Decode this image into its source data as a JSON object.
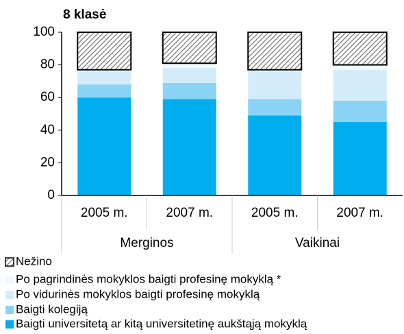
{
  "chart_data": {
    "type": "stacked-bar",
    "title": "8 klasė",
    "categories": [
      "2005 m.",
      "2007 m.",
      "2005 m.",
      "2007 m."
    ],
    "groups": [
      "Merginos",
      "Vaikinai"
    ],
    "series": [
      {
        "name": "Baigti universitetą ar kitą universitetinę aukštąją mokyklą",
        "color": "#00aeef",
        "values": [
          60,
          59,
          49,
          45
        ]
      },
      {
        "name": "Baigti kolegiją",
        "color": "#8ad3f4",
        "values": [
          8,
          10,
          10,
          13
        ]
      },
      {
        "name": "Po vidurinės mokyklos baigti profesinę mokyklą",
        "color": "#d3ecfa",
        "values": [
          8,
          9,
          17,
          19
        ]
      },
      {
        "name": "Po pagrindinės mokyklos baigti profesinę mokyklą *",
        "color": "#eef8fe",
        "values": [
          1,
          3,
          1,
          3
        ]
      },
      {
        "name": "Nežino",
        "color": "#ffffff",
        "hatch": true,
        "values": [
          23,
          19,
          23,
          20
        ]
      }
    ],
    "ylim": [
      0,
      100
    ],
    "yticks": [
      0,
      20,
      40,
      60,
      80,
      100
    ],
    "grid": false
  }
}
